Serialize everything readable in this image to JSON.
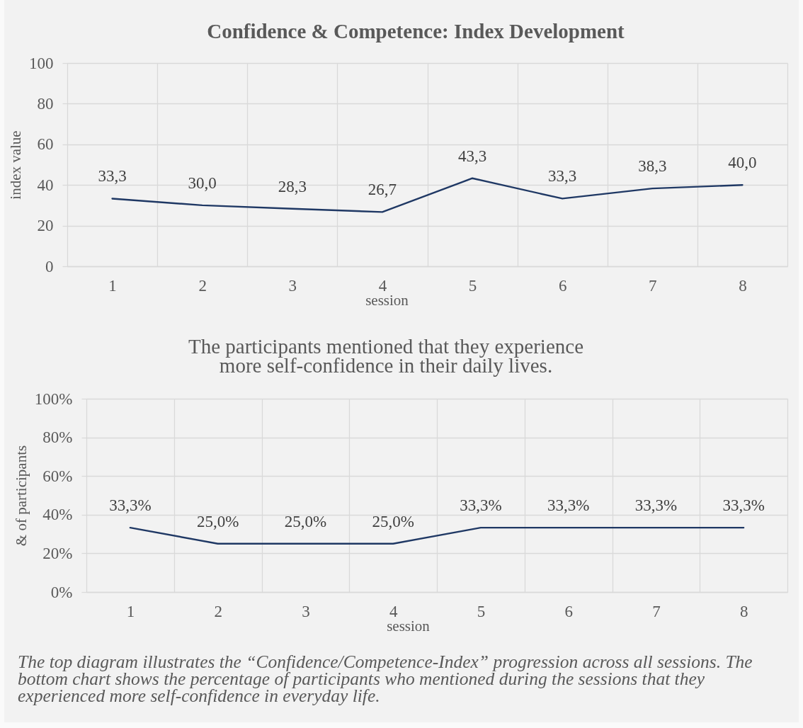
{
  "chart_data": [
    {
      "type": "line",
      "title": "Confidence & Competence: Index Development",
      "xlabel": "session",
      "ylabel": "index value",
      "categories": [
        "1",
        "2",
        "3",
        "4",
        "5",
        "6",
        "7",
        "8"
      ],
      "series": [
        {
          "color": "#1f3864",
          "values": [
            33.3,
            30.0,
            28.3,
            26.7,
            43.3,
            33.3,
            38.3,
            40.0
          ],
          "value_labels": [
            "33,3",
            "30,0",
            "28,3",
            "26,7",
            "43,3",
            "33,3",
            "38,3",
            "40,0"
          ]
        }
      ],
      "ylim": [
        0,
        100
      ],
      "yticks": [
        0,
        20,
        40,
        60,
        80,
        100
      ],
      "grid": true
    },
    {
      "type": "line",
      "title": "The participants mentioned that they experience more self-confidence in their daily lives.",
      "xlabel": "session",
      "ylabel": "& of participants",
      "categories": [
        "1",
        "2",
        "3",
        "4",
        "5",
        "6",
        "7",
        "8"
      ],
      "series": [
        {
          "color": "#1f3864",
          "values": [
            33.3,
            25.0,
            25.0,
            25.0,
            33.3,
            33.3,
            33.3,
            33.3
          ],
          "value_labels": [
            "33,3%",
            "25,0%",
            "25,0%",
            "25,0%",
            "33,3%",
            "33,3%",
            "33,3%",
            "33,3%"
          ]
        }
      ],
      "ylim": [
        0,
        100
      ],
      "yticks": [
        {
          "value": 0,
          "label": "0%"
        },
        {
          "value": 20,
          "label": "20%"
        },
        {
          "value": 40,
          "label": "40%"
        },
        {
          "value": 60,
          "label": "60%"
        },
        {
          "value": 80,
          "label": "80%"
        },
        {
          "value": 100,
          "label": "100%"
        }
      ],
      "grid": true,
      "annotations": [
        "The top diagram illustrates the “Confidence/Competence-Index” progression across all sessions. The bottom chart shows the percentage of participants who mentioned during the sessions that they experienced more self-confidence in everyday life."
      ]
    }
  ]
}
